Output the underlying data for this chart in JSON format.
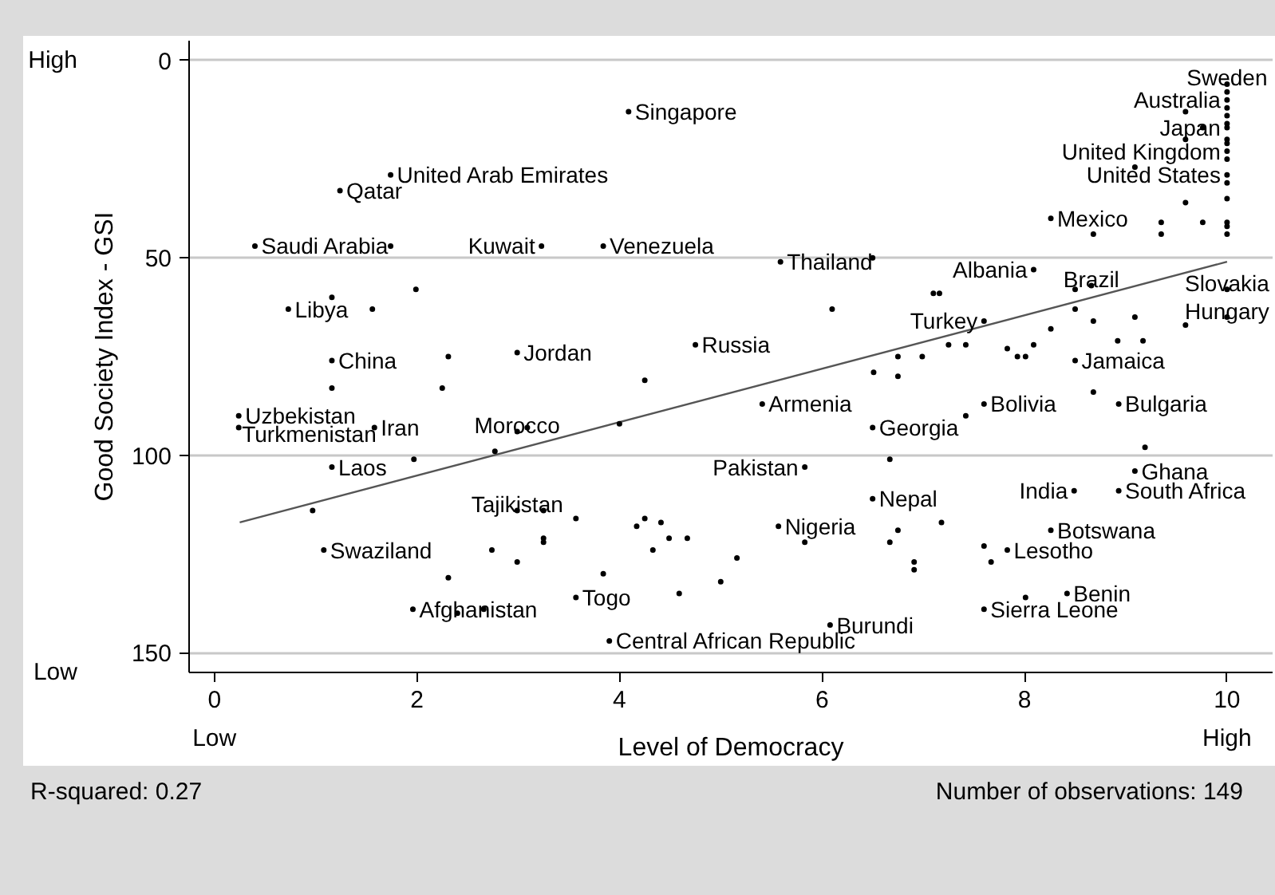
{
  "chart_data": {
    "type": "scatter",
    "xlabel": "Level of Democracy",
    "ylabel": "Good Society Index - GSI",
    "xlim": [
      -0.25,
      10.45
    ],
    "ylim": [
      155,
      -5
    ],
    "xticks": [
      0,
      2,
      4,
      6,
      8,
      10
    ],
    "yticks": [
      0,
      50,
      100,
      150
    ],
    "grid": "y",
    "series": [
      {
        "color": "#000000",
        "marker": "circle",
        "x": [
          4.09,
          1.74,
          1.24,
          0.4,
          3.23,
          3.84,
          5.59,
          0.73,
          1.16,
          2.99,
          4.75,
          0.24,
          1.58,
          0.24,
          1.16,
          2.99,
          2.99,
          1.08,
          1.96,
          3.57,
          3.9,
          5.83,
          5.41,
          5.57,
          6.08,
          6.5,
          6.5,
          7.6,
          8.09,
          8.66,
          8.26,
          7.6,
          8.5,
          8.93,
          9.09,
          8.93,
          8.49,
          8.26,
          7.83,
          8.42,
          7.6,
          10,
          10,
          10,
          10,
          10,
          10,
          10,
          3.09,
          10,
          10,
          10,
          10,
          10,
          10,
          10,
          10,
          10,
          10,
          10,
          10,
          9.59,
          9.76,
          9.59,
          9.09,
          9.59,
          9.76,
          9.35,
          9.35,
          8.68,
          7.1,
          7.16,
          8.5,
          8.5,
          8.68,
          9.09,
          9.59,
          8.26,
          6.99,
          7.25,
          7.42,
          7.83,
          7.93,
          8.01,
          8.09,
          8.92,
          9.17,
          8.68,
          7.42,
          9.19,
          7.18,
          6.91,
          6.91,
          7.6,
          7.67,
          8.01,
          4.25,
          4.0,
          6.51,
          6.75,
          6.75,
          6.1,
          6.67,
          3.57,
          4.17,
          4.25,
          4.41,
          4.49,
          4.67,
          4.33,
          5.16,
          3.84,
          4.59,
          5.0,
          5.83,
          6.75,
          6.67,
          2.31,
          1.16,
          2.25,
          1.97,
          2.77,
          0.97,
          3.25,
          3.25,
          3.25,
          2.74,
          2.99,
          2.31,
          2.4,
          2.66,
          1.16,
          1.56,
          1.99,
          1.74,
          6.5
        ],
        "values": [
          13,
          29,
          33,
          47,
          47,
          47,
          51,
          63,
          76,
          74,
          72,
          90,
          93,
          93,
          103,
          94,
          114,
          124,
          139,
          136,
          147,
          103,
          87,
          118,
          143,
          93,
          111,
          66,
          53,
          57,
          40,
          87,
          76,
          87,
          104,
          109,
          109,
          119,
          124,
          135,
          139,
          6,
          10,
          17,
          23,
          29,
          58,
          65,
          93,
          8,
          12,
          14,
          16,
          20,
          21,
          25,
          31,
          35,
          41,
          42,
          44,
          13,
          17,
          20,
          27,
          36,
          41,
          41,
          44,
          44,
          59,
          59,
          58,
          63,
          66,
          65,
          67,
          68,
          75,
          72,
          72,
          73,
          75,
          75,
          72,
          71,
          71,
          84,
          90,
          98,
          117,
          127,
          129,
          123,
          127,
          136,
          81,
          92,
          79,
          80,
          75,
          63,
          101,
          116,
          118,
          116,
          117,
          121,
          121,
          124,
          126,
          130,
          135,
          132,
          122,
          119,
          122,
          75,
          83,
          83,
          101,
          99,
          114,
          114,
          121,
          122,
          124,
          127,
          131,
          140,
          139,
          60,
          63,
          58,
          47,
          50
        ]
      },
      {
        "type": "line",
        "color": "#555555",
        "x": [
          0.25,
          10
        ],
        "values": [
          117,
          51
        ]
      }
    ],
    "annotations": [
      "High",
      "Low",
      "Low",
      "High",
      "R-squared: 0.27",
      "Number of observations: 149",
      {
        "text": "Singapore",
        "x": 4.09,
        "y": 13
      },
      {
        "text": "United Arab Emirates",
        "x": 1.74,
        "y": 29
      },
      {
        "text": "Qatar",
        "x": 1.24,
        "y": 33
      },
      {
        "text": "Saudi Arabia",
        "x": 0.4,
        "y": 47
      },
      {
        "text": "Kuwait",
        "x": 3.23,
        "y": 47
      },
      {
        "text": "Venezuela",
        "x": 3.84,
        "y": 47
      },
      {
        "text": "Thailand",
        "x": 5.59,
        "y": 51
      },
      {
        "text": "Libya",
        "x": 0.73,
        "y": 63
      },
      {
        "text": "China",
        "x": 1.16,
        "y": 76
      },
      {
        "text": "Jordan",
        "x": 2.99,
        "y": 74
      },
      {
        "text": "Russia",
        "x": 4.75,
        "y": 72
      },
      {
        "text": "Uzbekistan",
        "x": 0.24,
        "y": 90
      },
      {
        "text": "Iran",
        "x": 1.58,
        "y": 93
      },
      {
        "text": "Turkmenistan",
        "x": 0.24,
        "y": 93
      },
      {
        "text": "Laos",
        "x": 1.16,
        "y": 103
      },
      {
        "text": "Morocco",
        "x": 2.99,
        "y": 94
      },
      {
        "text": "Tajikistan",
        "x": 2.99,
        "y": 114
      },
      {
        "text": "Swaziland",
        "x": 1.08,
        "y": 124
      },
      {
        "text": "Afghanistan",
        "x": 1.96,
        "y": 139
      },
      {
        "text": "Togo",
        "x": 3.57,
        "y": 136
      },
      {
        "text": "Central African Republic",
        "x": 3.9,
        "y": 147
      },
      {
        "text": "Pakistan",
        "x": 5.83,
        "y": 103
      },
      {
        "text": "Armenia",
        "x": 5.41,
        "y": 87
      },
      {
        "text": "Nigeria",
        "x": 5.57,
        "y": 118
      },
      {
        "text": "Burundi",
        "x": 6.08,
        "y": 143
      },
      {
        "text": "Georgia",
        "x": 6.5,
        "y": 93
      },
      {
        "text": "Nepal",
        "x": 6.5,
        "y": 111
      },
      {
        "text": "Turkey",
        "x": 7.6,
        "y": 66
      },
      {
        "text": "Albania",
        "x": 8.09,
        "y": 53
      },
      {
        "text": "Brazil",
        "x": 8.66,
        "y": 57
      },
      {
        "text": "Mexico",
        "x": 8.26,
        "y": 40
      },
      {
        "text": "Bolivia",
        "x": 7.6,
        "y": 87
      },
      {
        "text": "Jamaica",
        "x": 8.5,
        "y": 76
      },
      {
        "text": "Bulgaria",
        "x": 8.93,
        "y": 87
      },
      {
        "text": "Ghana",
        "x": 9.09,
        "y": 104
      },
      {
        "text": "South Africa",
        "x": 8.93,
        "y": 109
      },
      {
        "text": "India",
        "x": 8.49,
        "y": 109
      },
      {
        "text": "Botswana",
        "x": 8.26,
        "y": 119
      },
      {
        "text": "Lesotho",
        "x": 7.83,
        "y": 124
      },
      {
        "text": "Benin",
        "x": 8.42,
        "y": 135
      },
      {
        "text": "Sierra Leone",
        "x": 7.6,
        "y": 139
      },
      {
        "text": "Sweden",
        "x": 10,
        "y": 6
      },
      {
        "text": "Australia",
        "x": 10,
        "y": 10
      },
      {
        "text": "Japan",
        "x": 10,
        "y": 17
      },
      {
        "text": "United Kingdom",
        "x": 10,
        "y": 23
      },
      {
        "text": "United States",
        "x": 10,
        "y": 29
      },
      {
        "text": "Slovakia",
        "x": 10,
        "y": 58
      },
      {
        "text": "Hungary",
        "x": 10,
        "y": 65
      }
    ]
  }
}
